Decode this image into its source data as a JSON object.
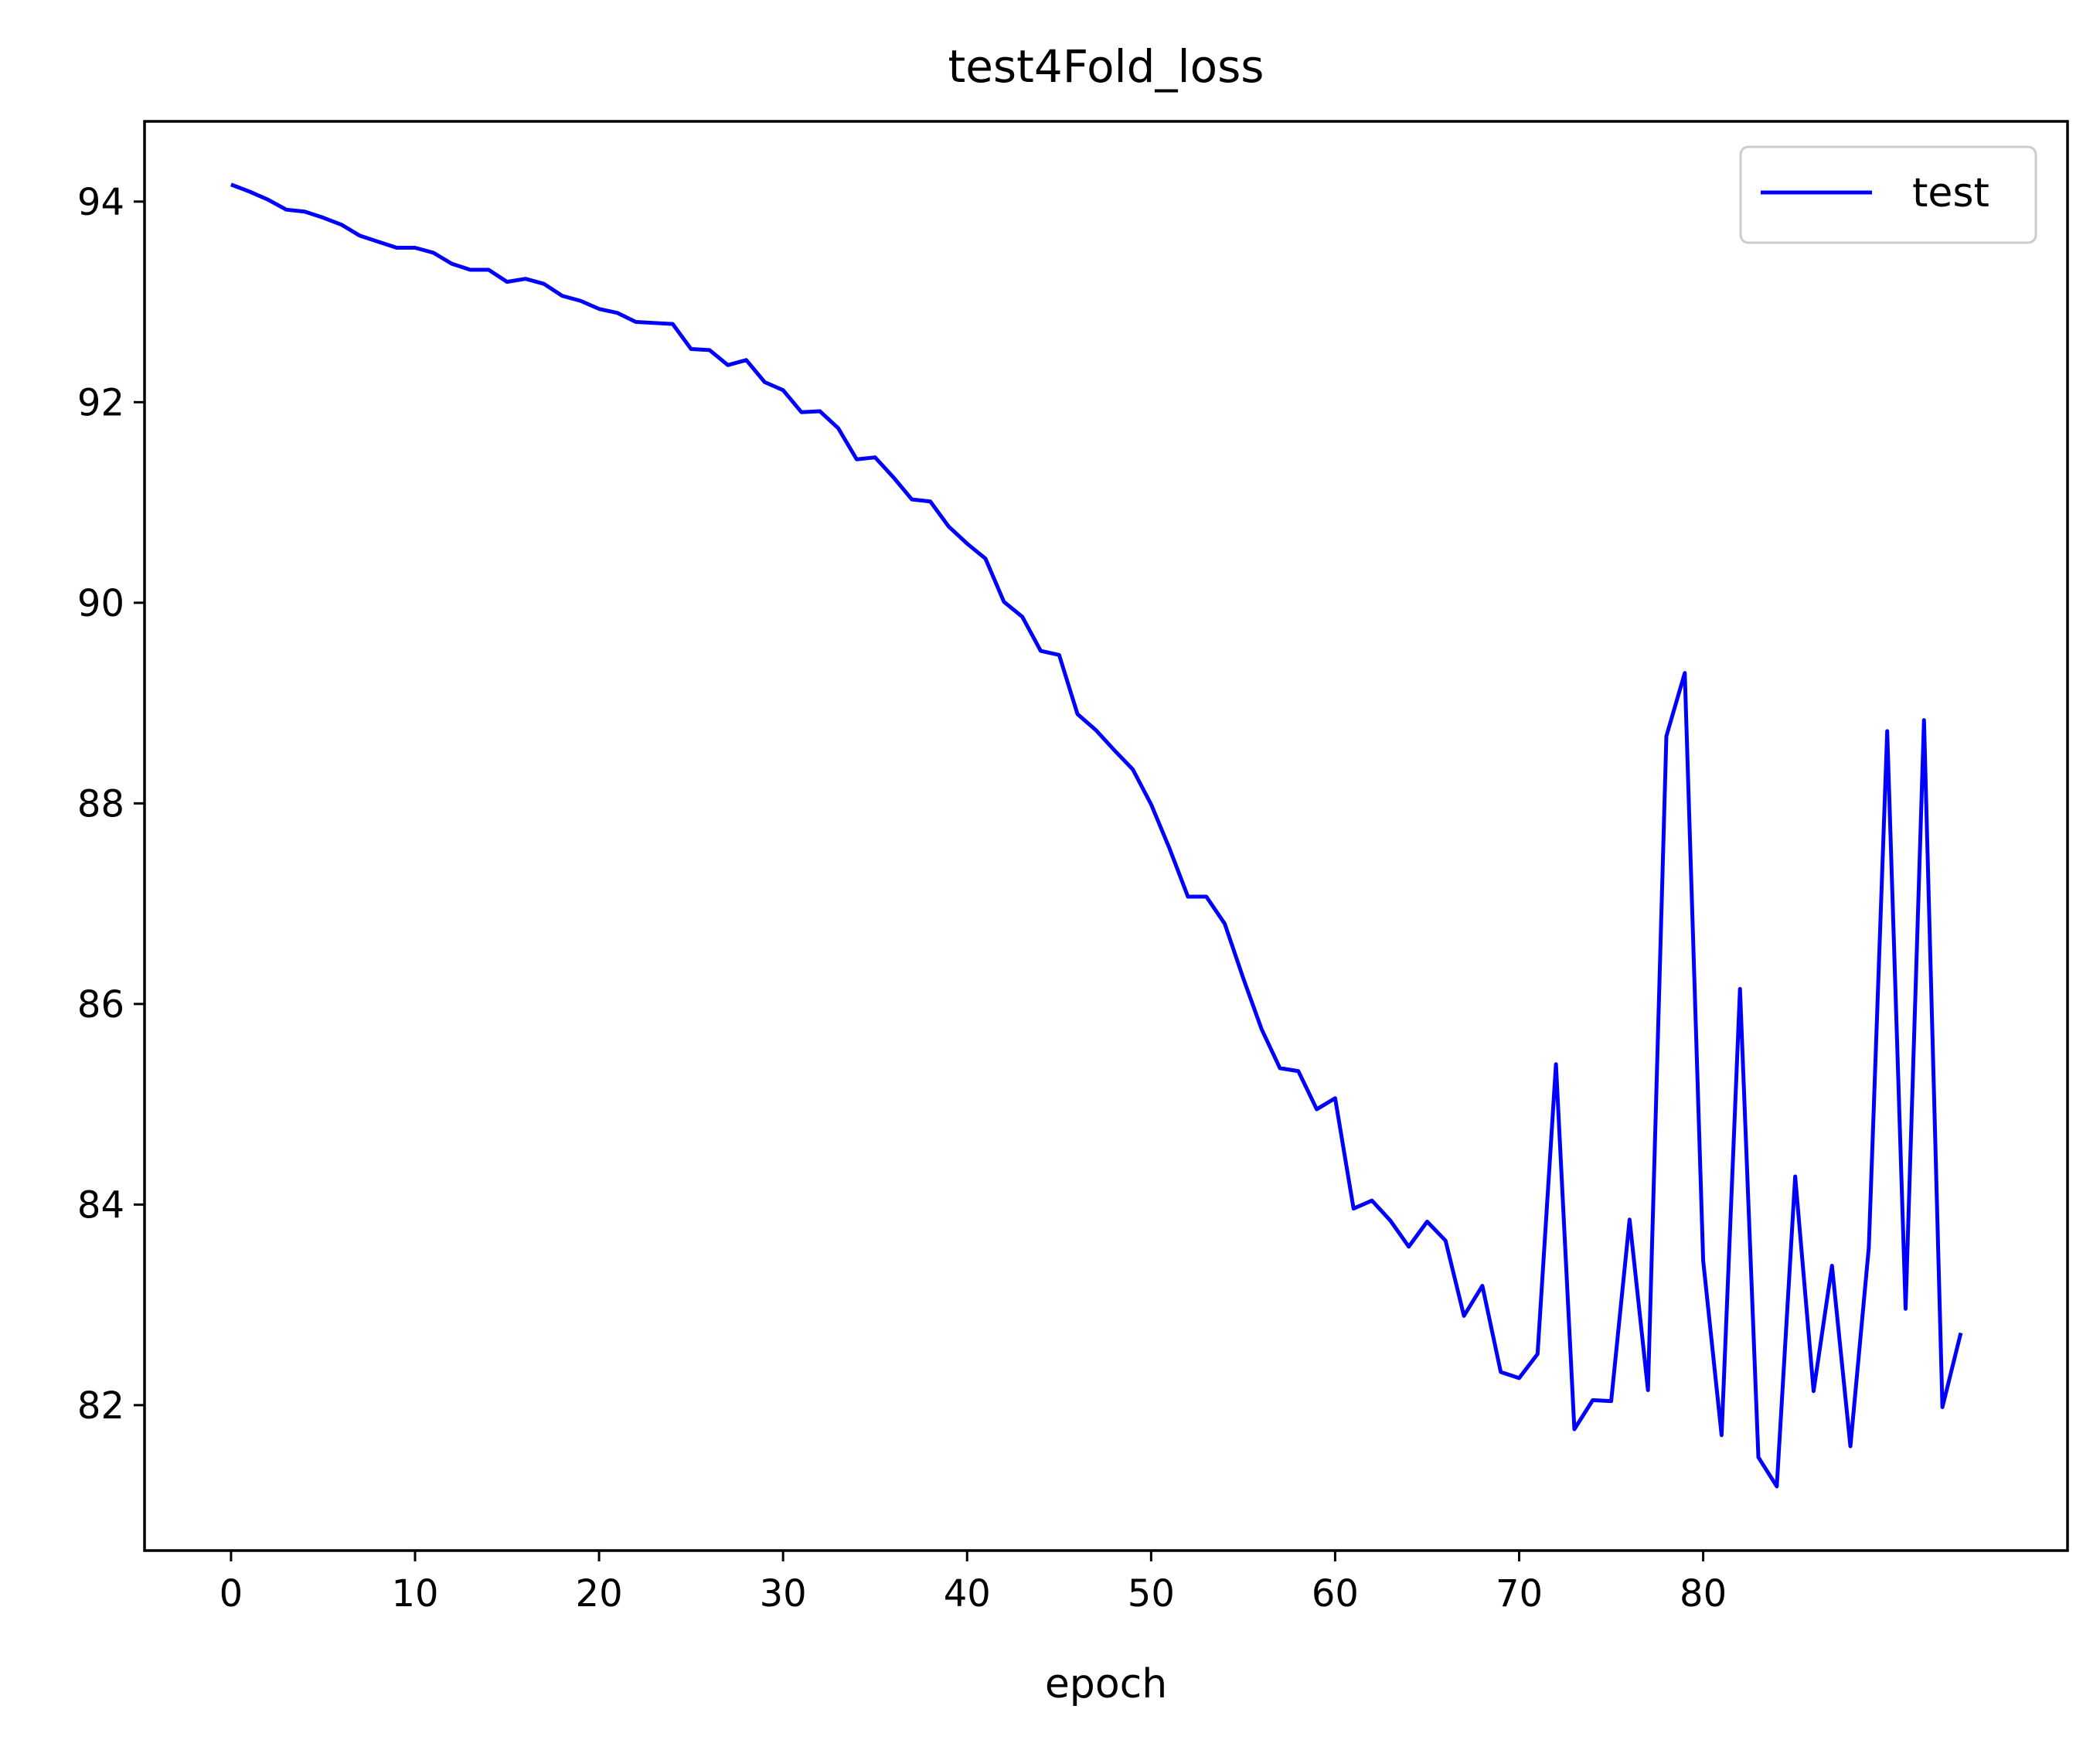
{
  "chart_data": {
    "type": "line",
    "title": "test4Fold_loss",
    "xlabel": "epoch",
    "ylabel": "",
    "xlim": [
      -4.7,
      99.8
    ],
    "ylim": [
      80.55,
      94.8
    ],
    "xticks": [
      0,
      10,
      20,
      30,
      40,
      50,
      60,
      70,
      80
    ],
    "yticks": [
      82,
      84,
      86,
      88,
      90,
      92,
      94
    ],
    "grid": false,
    "legend_position": "top-right",
    "colors": {
      "line": "#0000ff",
      "axes": "#000000",
      "background": "#ffffff",
      "legend_border": "#cccccc"
    },
    "series": [
      {
        "name": "test",
        "x": [
          0,
          1,
          2,
          3,
          4,
          5,
          6,
          7,
          8,
          9,
          10,
          11,
          12,
          13,
          14,
          15,
          16,
          17,
          18,
          19,
          20,
          21,
          22,
          23,
          24,
          25,
          26,
          27,
          28,
          29,
          30,
          31,
          32,
          33,
          34,
          35,
          36,
          37,
          38,
          39,
          40,
          41,
          42,
          43,
          44,
          45,
          46,
          47,
          48,
          49,
          50,
          51,
          52,
          53,
          54,
          55,
          56,
          57,
          58,
          59,
          60,
          61,
          62,
          63,
          64,
          65,
          66,
          67,
          68,
          69,
          70,
          71,
          72,
          73,
          74,
          75,
          76,
          77,
          78,
          79,
          80,
          81,
          82,
          83,
          84,
          85,
          86,
          87,
          88,
          89,
          90,
          91,
          92,
          93,
          94
        ],
        "y": [
          94.17,
          94.1,
          94.02,
          93.92,
          93.9,
          93.84,
          93.77,
          93.66,
          93.6,
          93.54,
          93.54,
          93.49,
          93.38,
          93.32,
          93.32,
          93.2,
          93.23,
          93.18,
          93.06,
          93.01,
          92.93,
          92.89,
          92.8,
          92.79,
          92.78,
          92.53,
          92.52,
          92.37,
          92.42,
          92.2,
          92.12,
          91.9,
          91.91,
          91.74,
          91.43,
          91.45,
          91.25,
          91.03,
          91.01,
          90.76,
          90.59,
          90.44,
          90.01,
          89.86,
          89.52,
          89.48,
          88.89,
          88.73,
          88.53,
          88.34,
          87.99,
          87.55,
          87.07,
          87.07,
          86.8,
          86.26,
          85.75,
          85.36,
          85.33,
          84.95,
          85.06,
          83.96,
          84.04,
          83.84,
          83.58,
          83.83,
          83.64,
          82.89,
          83.19,
          82.33,
          82.27,
          82.51,
          85.4,
          81.76,
          82.05,
          82.04,
          83.85,
          82.15,
          88.67,
          89.3,
          83.44,
          81.7,
          86.15,
          81.48,
          81.19,
          84.28,
          82.14,
          83.39,
          81.59,
          83.57,
          88.72,
          82.96,
          88.83,
          81.98,
          82.72
        ]
      }
    ]
  }
}
